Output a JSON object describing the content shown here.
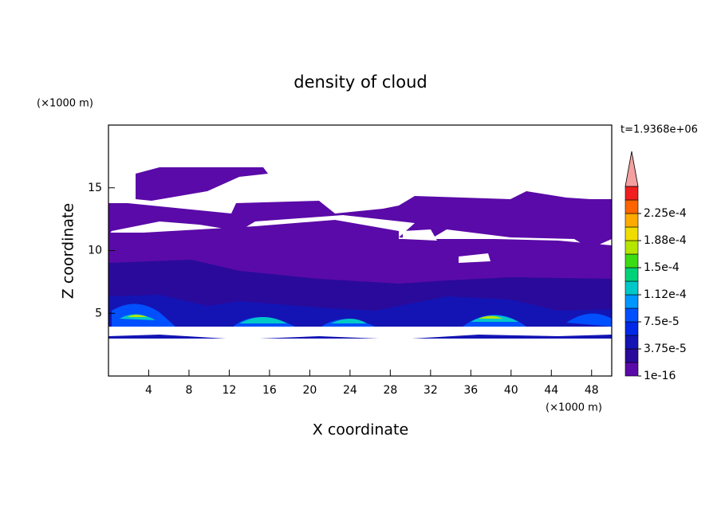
{
  "chart_data": {
    "type": "contour",
    "title": "density of cloud",
    "x_label": "X coordinate",
    "y_label": "Z coordinate",
    "x_unit": "(×1000 m)",
    "y_unit": "(×1000 m)",
    "annotation": "t=1.9368e+06",
    "xlim": [
      0,
      50
    ],
    "ylim": [
      0,
      20
    ],
    "xticks": [
      4,
      8,
      12,
      16,
      20,
      24,
      28,
      32,
      36,
      40,
      44,
      48
    ],
    "yticks": [
      5,
      10,
      15
    ],
    "colorbar": {
      "levels": [
        {
          "value": 1e-16,
          "label": "1e-16"
        },
        {
          "value": 3.75e-05,
          "label": "3.75e-5"
        },
        {
          "value": 7.5e-05,
          "label": "7.5e-5"
        },
        {
          "value": 0.000112,
          "label": "1.12e-4"
        },
        {
          "value": 0.00015,
          "label": "1.5e-4"
        },
        {
          "value": 0.000188,
          "label": "1.88e-4"
        },
        {
          "value": 0.000225,
          "label": "2.25e-4"
        }
      ],
      "colors": [
        "#5a0aa8",
        "#2a0a9a",
        "#1414b4",
        "#0028e6",
        "#0050ff",
        "#0096ff",
        "#00c8c8",
        "#00d278",
        "#3cdc14",
        "#b4e600",
        "#f0dc00",
        "#ffaa00",
        "#ff6400",
        "#f01e1e"
      ],
      "extend_color": "#f4a0a0"
    }
  }
}
